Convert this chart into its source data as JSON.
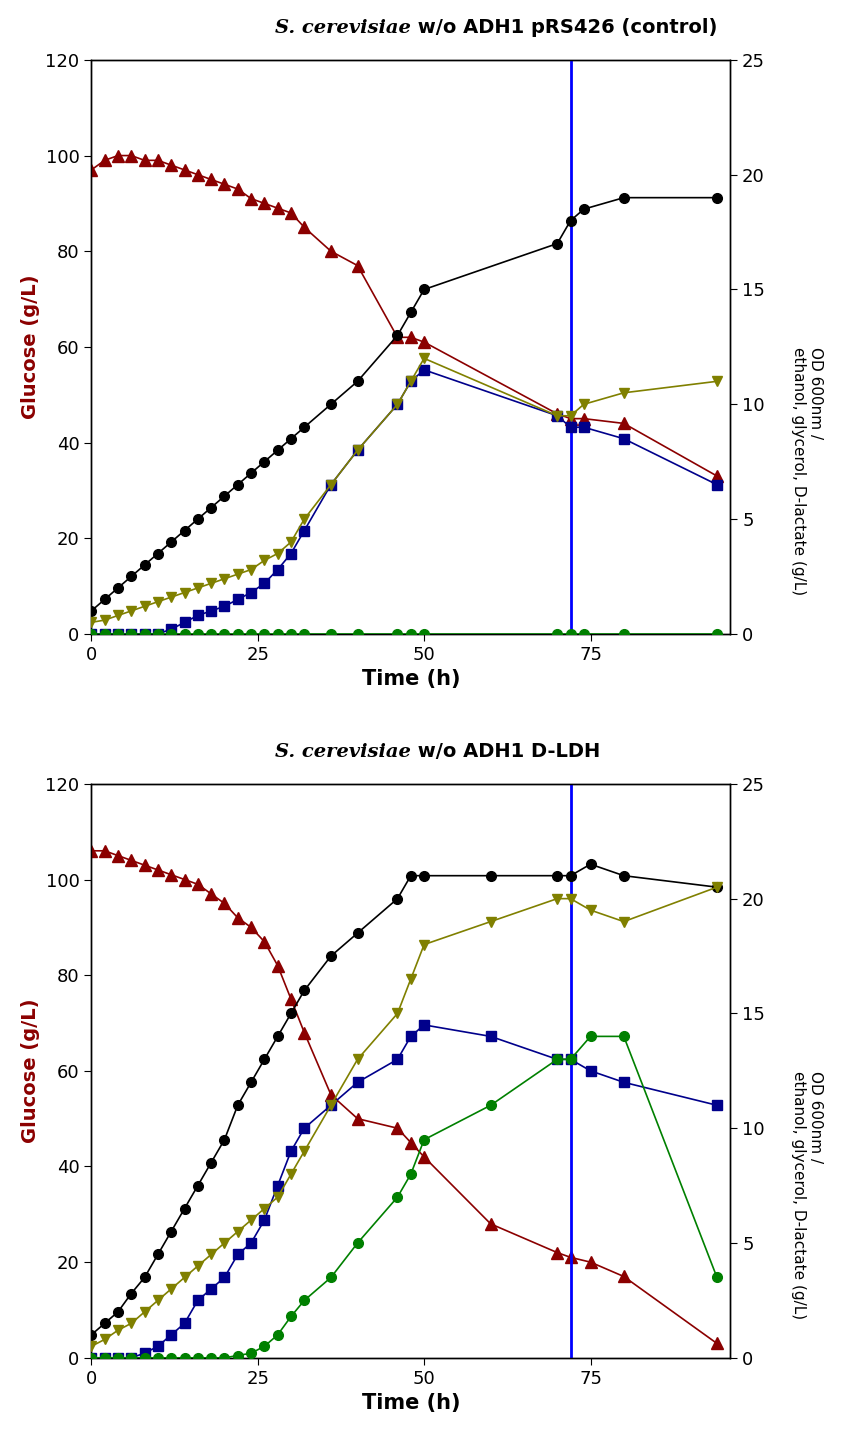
{
  "plot1": {
    "title": "S. cerevisiae w/o ADH1 pRS426 (control)",
    "title_italic_part": "S. cerevisiae",
    "blue_line_x": 72,
    "glucose": {
      "x": [
        0,
        2,
        4,
        6,
        8,
        10,
        12,
        14,
        16,
        18,
        20,
        22,
        24,
        26,
        28,
        30,
        32,
        36,
        40,
        46,
        48,
        50,
        70,
        72,
        74,
        80,
        94
      ],
      "y": [
        97,
        99,
        100,
        100,
        99,
        99,
        98,
        97,
        96,
        95,
        94,
        93,
        91,
        90,
        89,
        88,
        85,
        80,
        77,
        62,
        62,
        61,
        46,
        45,
        45,
        44,
        33
      ]
    },
    "od600": {
      "x": [
        0,
        2,
        4,
        6,
        8,
        10,
        12,
        14,
        16,
        18,
        20,
        22,
        24,
        26,
        28,
        30,
        32,
        36,
        40,
        46,
        48,
        50,
        70,
        72,
        74,
        80,
        94
      ],
      "y": [
        1,
        1.5,
        2,
        2.5,
        3,
        3.5,
        4,
        4.5,
        5,
        5.5,
        6,
        6.5,
        7,
        7.5,
        8,
        8.5,
        9,
        10,
        11,
        13,
        14,
        15,
        17,
        18,
        18.5,
        19,
        19
      ]
    },
    "ethanol": {
      "x": [
        0,
        2,
        4,
        6,
        8,
        10,
        12,
        14,
        16,
        18,
        20,
        22,
        24,
        26,
        28,
        30,
        32,
        36,
        40,
        46,
        48,
        50,
        70,
        72,
        74,
        80,
        94
      ],
      "y": [
        0,
        0,
        0,
        0,
        0,
        0,
        0.2,
        0.5,
        0.8,
        1.0,
        1.2,
        1.5,
        1.8,
        2.2,
        2.8,
        3.5,
        4.5,
        6.5,
        8,
        10,
        11,
        11.5,
        9.5,
        9,
        9,
        8.5,
        6.5
      ]
    },
    "glycerol": {
      "x": [
        0,
        2,
        4,
        6,
        8,
        10,
        12,
        14,
        16,
        18,
        20,
        22,
        24,
        26,
        28,
        30,
        32,
        36,
        40,
        46,
        48,
        50,
        70,
        72,
        74,
        80,
        94
      ],
      "y": [
        0.5,
        0.6,
        0.8,
        1.0,
        1.2,
        1.4,
        1.6,
        1.8,
        2.0,
        2.2,
        2.4,
        2.6,
        2.8,
        3.2,
        3.5,
        4.0,
        5.0,
        6.5,
        8,
        10,
        11,
        12,
        9.5,
        9.5,
        10,
        10.5,
        11
      ]
    },
    "dlactate": {
      "x": [
        0,
        2,
        4,
        6,
        8,
        10,
        12,
        14,
        16,
        18,
        20,
        22,
        24,
        26,
        28,
        30,
        32,
        36,
        40,
        46,
        48,
        50,
        70,
        72,
        74,
        80,
        94
      ],
      "y": [
        0,
        0,
        0,
        0,
        0,
        0,
        0,
        0,
        0,
        0,
        0,
        0,
        0,
        0,
        0,
        0,
        0,
        0,
        0,
        0,
        0,
        0,
        0,
        0,
        0,
        0,
        0
      ]
    }
  },
  "plot2": {
    "title": "S. cerevisiae w/o ADH1 D-LDH",
    "title_italic_part": "S. cerevisiae",
    "blue_line_x": 72,
    "glucose": {
      "x": [
        0,
        2,
        4,
        6,
        8,
        10,
        12,
        14,
        16,
        18,
        20,
        22,
        24,
        26,
        28,
        30,
        32,
        36,
        40,
        46,
        48,
        50,
        60,
        70,
        72,
        75,
        80,
        94
      ],
      "y": [
        106,
        106,
        105,
        104,
        103,
        102,
        101,
        100,
        99,
        97,
        95,
        92,
        90,
        87,
        82,
        75,
        68,
        55,
        50,
        48,
        45,
        42,
        28,
        22,
        21,
        20,
        17,
        3
      ]
    },
    "od600": {
      "x": [
        0,
        2,
        4,
        6,
        8,
        10,
        12,
        14,
        16,
        18,
        20,
        22,
        24,
        26,
        28,
        30,
        32,
        36,
        40,
        46,
        48,
        50,
        60,
        70,
        72,
        75,
        80,
        94
      ],
      "y": [
        1,
        1.5,
        2,
        2.8,
        3.5,
        4.5,
        5.5,
        6.5,
        7.5,
        8.5,
        9.5,
        11,
        12,
        13,
        14,
        15,
        16,
        17.5,
        18.5,
        20,
        21,
        21,
        21,
        21,
        21,
        21.5,
        21,
        20.5
      ]
    },
    "ethanol": {
      "x": [
        0,
        2,
        4,
        6,
        8,
        10,
        12,
        14,
        16,
        18,
        20,
        22,
        24,
        26,
        28,
        30,
        32,
        36,
        40,
        46,
        48,
        50,
        60,
        70,
        72,
        75,
        80,
        94
      ],
      "y": [
        0,
        0,
        0,
        0,
        0.2,
        0.5,
        1,
        1.5,
        2.5,
        3,
        3.5,
        4.5,
        5,
        6,
        7.5,
        9,
        10,
        11,
        12,
        13,
        14,
        14.5,
        14,
        13,
        13,
        12.5,
        12,
        11
      ]
    },
    "glycerol": {
      "x": [
        0,
        2,
        4,
        6,
        8,
        10,
        12,
        14,
        16,
        18,
        20,
        22,
        24,
        26,
        28,
        30,
        32,
        36,
        40,
        46,
        48,
        50,
        60,
        70,
        72,
        75,
        80,
        94
      ],
      "y": [
        0.5,
        0.8,
        1.2,
        1.5,
        2,
        2.5,
        3,
        3.5,
        4,
        4.5,
        5,
        5.5,
        6,
        6.5,
        7,
        8,
        9,
        11,
        13,
        15,
        16.5,
        18,
        19,
        20,
        20,
        19.5,
        19,
        20.5
      ]
    },
    "dlactate": {
      "x": [
        0,
        2,
        4,
        6,
        8,
        10,
        12,
        14,
        16,
        18,
        20,
        22,
        24,
        26,
        28,
        30,
        32,
        36,
        40,
        46,
        48,
        50,
        60,
        70,
        72,
        75,
        80,
        94
      ],
      "y": [
        0,
        0,
        0,
        0,
        0,
        0,
        0,
        0,
        0,
        0,
        0,
        0.1,
        0.2,
        0.5,
        1,
        1.8,
        2.5,
        3.5,
        5,
        7,
        8,
        9.5,
        11,
        13,
        13,
        14,
        14,
        3.5
      ]
    }
  },
  "colors": {
    "glucose": "#8B0000",
    "od600": "#000000",
    "ethanol": "#00008B",
    "glycerol": "#808000",
    "dlactate": "#008000"
  },
  "xlim": [
    0,
    96
  ],
  "ylim_left": [
    0,
    120
  ],
  "ylim_right": [
    0,
    25
  ],
  "xticks": [
    0,
    25,
    50,
    75
  ],
  "yticks_left": [
    0,
    20,
    40,
    60,
    80,
    100,
    120
  ],
  "yticks_right": [
    0,
    5,
    10,
    15,
    20,
    25
  ],
  "xlabel": "Time (h)",
  "ylabel_left": "Glucose (g/L)",
  "ylabel_right": "OD 600nm /\nethanol, glycerol, D-lactate (g/L)"
}
